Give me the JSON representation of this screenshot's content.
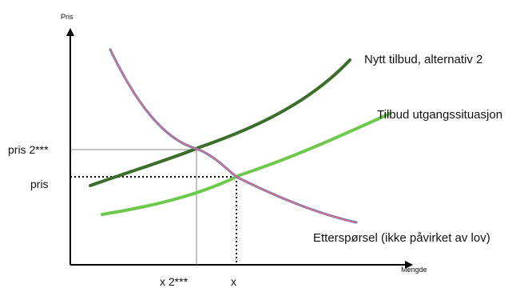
{
  "chart_data": {
    "type": "line",
    "title": "",
    "ylabel": "Pris",
    "xlabel": "Mengde",
    "grid": false,
    "y_markers": [
      {
        "label": "pris 2***",
        "value": 2
      },
      {
        "label": "pris",
        "value": 1
      }
    ],
    "x_markers": [
      {
        "label": "x 2***",
        "value": 1
      },
      {
        "label": "x",
        "value": 2
      }
    ],
    "series": [
      {
        "name": "Nytt tilbud, alternativ 2",
        "role": "supply-new",
        "color": "#3a6e2a"
      },
      {
        "name": "Tilbud utgangssituasjon",
        "role": "supply-base",
        "color": "#6dc94b"
      },
      {
        "name": "Etterspørsel (ikke påvirket av lov)",
        "role": "demand",
        "color": "#4a6fe0",
        "overlay_color": "#e8736e"
      }
    ]
  }
}
